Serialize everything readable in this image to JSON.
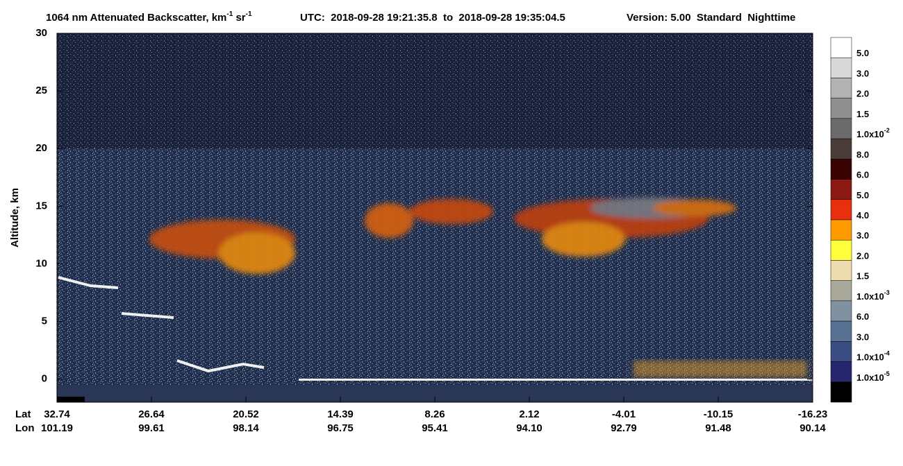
{
  "chart_data": {
    "type": "heatmap",
    "title": {
      "text1": "1064 nm Attenuated Backscatter, km",
      "sup1": "-1",
      "text2": " sr",
      "sup2": "-1"
    },
    "utc": "UTC:  2018-09-28 19:21:35.8  to  2018-09-28 19:35:04.5",
    "version": "Version: 5.00  Standard  Nighttime",
    "y_label": "Altitude, km",
    "ylim": [
      -2,
      30
    ],
    "yticks": [
      0,
      5,
      10,
      15,
      20,
      25,
      30
    ],
    "x_row_labels": [
      "Lat",
      "Lon"
    ],
    "lat": [
      "32.74",
      "26.64",
      "20.52",
      "14.39",
      "8.26",
      "2.12",
      "-4.01",
      "-10.15",
      "-16.23"
    ],
    "lon": [
      "101.19",
      "99.61",
      "98.14",
      "96.75",
      "95.41",
      "94.10",
      "92.79",
      "91.48",
      "90.14"
    ],
    "colorbar": {
      "colors": [
        "#ffffff",
        "#d9d9d9",
        "#b2b2b2",
        "#8f8f8f",
        "#6b6b6b",
        "#4a3d39",
        "#3a0404",
        "#8c1a12",
        "#e8300f",
        "#ff9a00",
        "#ffff3c",
        "#ecdcae",
        "#a9a99b",
        "#8091a2",
        "#587294",
        "#3b4d82",
        "#25266e",
        "#000000"
      ],
      "labels": [
        {
          "text": "5.0"
        },
        {
          "text": "3.0"
        },
        {
          "text": "2.0"
        },
        {
          "text": "1.5"
        },
        {
          "text": "1.0x10",
          "exp": "-2"
        },
        {
          "text": "8.0"
        },
        {
          "text": "6.0"
        },
        {
          "text": "5.0"
        },
        {
          "text": "4.0"
        },
        {
          "text": "3.0"
        },
        {
          "text": "2.0"
        },
        {
          "text": "1.5"
        },
        {
          "text": "1.0x10",
          "exp": "-3"
        },
        {
          "text": "6.0"
        },
        {
          "text": "3.0"
        },
        {
          "text": "1.0x10",
          "exp": "-4"
        },
        {
          "text": "1.0x10",
          "exp": "-5"
        }
      ]
    }
  }
}
